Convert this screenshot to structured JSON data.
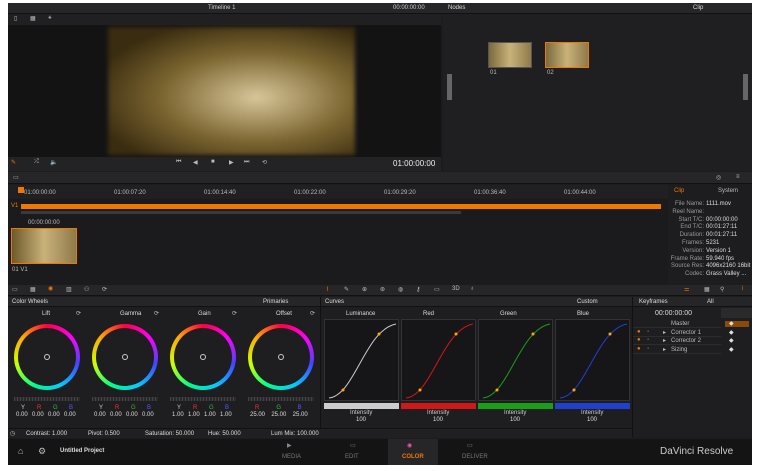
{
  "viewer": {
    "timeline": "Timeline 1",
    "timecode_top": "00:00:00:00",
    "timecode": "01:00:00:00"
  },
  "nodes": {
    "title": "Nodes",
    "mode": "Clip",
    "items": [
      {
        "label": "01"
      },
      {
        "label": "02"
      }
    ]
  },
  "timeline": {
    "ruler": [
      "01:00:00:00",
      "01:00:07:20",
      "01:00:14:40",
      "01:00:22:00",
      "01:00:29:20",
      "01:00:36:40",
      "01:00:44:00"
    ],
    "track": "V1",
    "clip_timecode": "00:00:00:00",
    "clip_label": "01  V1"
  },
  "info": {
    "tabs": [
      "Clip",
      "System"
    ],
    "rows": [
      [
        "File Name:",
        "1111.mov"
      ],
      [
        "Reel Name:",
        ""
      ],
      [
        "Start T/C:",
        "00:00:00:00"
      ],
      [
        "End T/C:",
        "00:01:27:11"
      ],
      [
        "Duration:",
        "00:01:27:11"
      ],
      [
        "Frames:",
        "5231"
      ],
      [
        "Version:",
        "Version 1"
      ],
      [
        "Frame Rate:",
        "59.940 fps"
      ],
      [
        "Source Res:",
        "4096x2160 16bit"
      ],
      [
        "Codec:",
        "Grass Valley ..."
      ]
    ]
  },
  "color_wheels": {
    "title": "Color Wheels",
    "mode": "Primaries",
    "wheels": [
      {
        "name": "Lift",
        "labels": [
          "Y",
          "R",
          "G",
          "B"
        ],
        "values": [
          "0.00",
          "0.00",
          "0.00",
          "0.00"
        ]
      },
      {
        "name": "Gamma",
        "labels": [
          "Y",
          "R",
          "G",
          "B"
        ],
        "values": [
          "0.00",
          "0.00",
          "0.00",
          "0.00"
        ]
      },
      {
        "name": "Gain",
        "labels": [
          "Y",
          "R",
          "G",
          "B"
        ],
        "values": [
          "1.00",
          "1.00",
          "1.00",
          "1.00"
        ]
      },
      {
        "name": "Offset",
        "labels": [
          "R",
          "G",
          "B"
        ],
        "values": [
          "25.00",
          "25.00",
          "25.00"
        ]
      }
    ],
    "footer": [
      "Contrast: 1.000",
      "Pivot: 0.500",
      "Saturation: 50.000",
      "Hue: 50.000",
      "Lum Mix: 100.000"
    ]
  },
  "curves": {
    "title": "Curves",
    "mode": "Custom",
    "channels": [
      {
        "name": "Luminance",
        "intensity_label": "Intensity",
        "intensity": "100",
        "color": "#cccccc"
      },
      {
        "name": "Red",
        "intensity_label": "Intensity",
        "intensity": "100",
        "color": "#d01818"
      },
      {
        "name": "Green",
        "intensity_label": "Intensity",
        "intensity": "100",
        "color": "#18a018"
      },
      {
        "name": "Blue",
        "intensity_label": "Intensity",
        "intensity": "100",
        "color": "#2040d0"
      }
    ]
  },
  "keyframes": {
    "title": "Keyframes",
    "filter": "All",
    "timecode": "00:00:00:00",
    "ruler": "00:00:00:0",
    "rows": [
      "Master",
      "Corrector 1",
      "Corrector 2",
      "Sizing"
    ]
  },
  "bottom": {
    "project": "Untitled Project",
    "pages": [
      "MEDIA",
      "EDIT",
      "COLOR",
      "DELIVER"
    ],
    "active": "COLOR",
    "brand": "DaVinci Resolve"
  },
  "colors": {
    "accent": "#f07800",
    "bg": "#1c1c1e"
  }
}
